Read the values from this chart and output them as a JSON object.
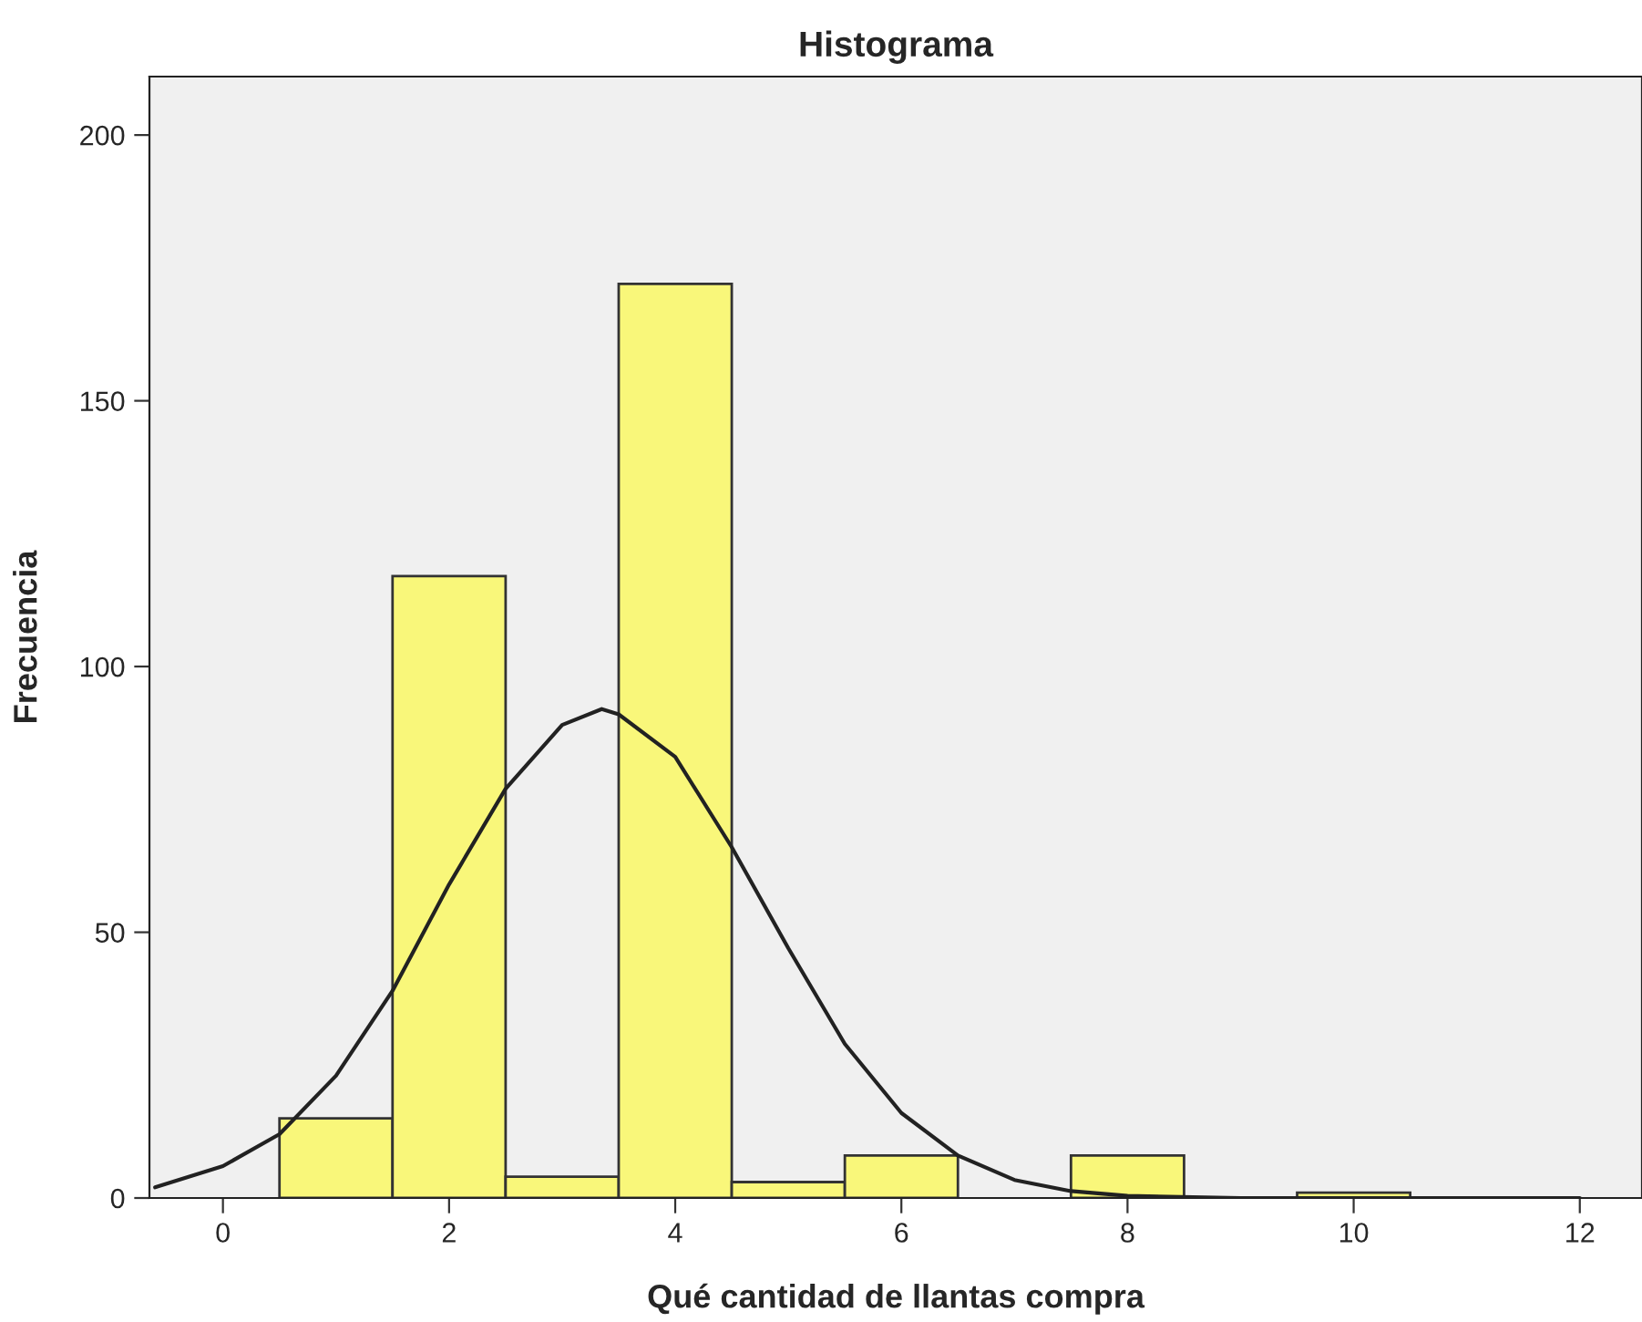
{
  "chart_data": {
    "type": "histogram",
    "title": "Histograma",
    "xlabel": "Qué cantidad de llantas compra",
    "ylabel": "Frecuencia",
    "bins": [
      0.5,
      1.5,
      2.5,
      3.5,
      4.5,
      5.5,
      6.5,
      7.5,
      8.5,
      9.5,
      10.5
    ],
    "values": [
      15,
      117,
      4,
      172,
      3,
      8,
      0,
      8,
      0,
      1
    ],
    "color": "#f9f77a",
    "series": [
      {
        "type": "line",
        "color": "#222222",
        "x": [
          -0.6,
          0,
          0.5,
          1,
          1.5,
          2,
          2.5,
          3,
          3.35,
          3.5,
          4,
          4.5,
          5,
          5.5,
          6,
          6.5,
          7,
          7.5,
          8,
          9,
          10,
          11,
          12
        ],
        "values": [
          2,
          6,
          12,
          23,
          39,
          59,
          77,
          89,
          92,
          91,
          83,
          66,
          47,
          29,
          16,
          8,
          3.4,
          1.3,
          0.4,
          0,
          0,
          0,
          0
        ]
      }
    ],
    "xlim": [
      -0.65,
      12.55
    ],
    "xticks": [
      0,
      2,
      4,
      6,
      8,
      10,
      12
    ],
    "ylim": [
      0,
      211
    ],
    "yticks": [
      0,
      50,
      100,
      150,
      200
    ],
    "grid": false,
    "legend": false
  }
}
